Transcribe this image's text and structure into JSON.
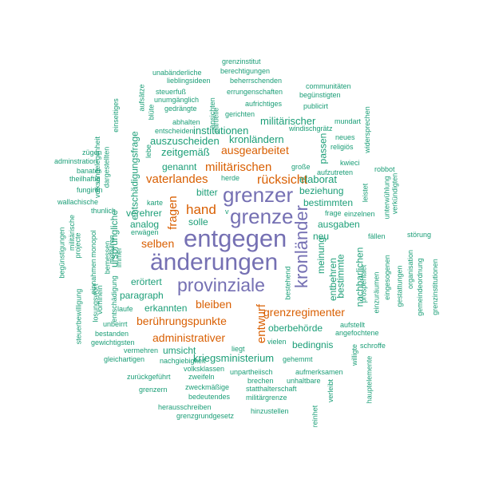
{
  "colors": {
    "purple": "#7570b3",
    "orange": "#d95f02",
    "teal": "#1b9e77"
  },
  "words": [
    "entgegen",
    "änderungen",
    "grenzer",
    "grenze",
    "provinziale",
    "kronländer",
    "rücksicht",
    "hand",
    "militärischen",
    "vaterlandes",
    "fragen",
    "entwurf",
    "grenzregimenter",
    "ausgearbeitet",
    "berührungspunkte",
    "administrativer",
    "bleiben",
    "selben",
    "institutionen",
    "kronländern",
    "auszuscheiden",
    "zeitgemäß",
    "militärischer",
    "elaborat",
    "beziehung",
    "bestimmten",
    "ausgaben",
    "entbehren",
    "meinung",
    "bestimmte",
    "nachbarlichen",
    "oberbehörde",
    "bedingnis",
    "kriegsministerium",
    "umsicht",
    "erkannten",
    "paragraph",
    "erörtert",
    "verehrer",
    "analog",
    "solle",
    "bitter",
    "genannt",
    "entschädigungsfrage",
    "ursprüngliche",
    "passen",
    "neu",
    "grenzinstitut",
    "berechtigungen",
    "beherrschenden",
    "lieblingsideen",
    "unabänderliche",
    "steuerfuß",
    "unumgänglich",
    "errungenschaften",
    "communitäten",
    "begünstigten",
    "aufrichtiges",
    "publicirt",
    "gedrängte",
    "gerichten",
    "abhalten",
    "ansichten",
    "partielle",
    "mundart",
    "entscheiden",
    "windischgrätz",
    "neues",
    "religiös",
    "widersprechen",
    "einseitiges",
    "aufsätze",
    "blüte",
    "lebe",
    "große",
    "aufzutreten",
    "robbot",
    "herde",
    "kwieci",
    "verkündigten",
    "unterwühlung",
    "leistet",
    "einzelnen",
    "frage",
    "fällen",
    "störung",
    "eingesogenen",
    "gestattungen",
    "organisation",
    "gemeindeordnung",
    "grenzinstitutionen",
    "prosperitaet",
    "einzuräumen",
    "hauptelemente",
    "angefochtene",
    "aufstellt",
    "schroffe",
    "willigte",
    "verleibt",
    "reinhet",
    "gehemmt",
    "unhaltbare",
    "statthalterschaft",
    "aufmerksamen",
    "unpartheiisch",
    "brechen",
    "militärgrenze",
    "hinzustellen",
    "grenzgrundgesetz",
    "herausschreiben",
    "bedeutendes",
    "zweckmäßige",
    "grenzern",
    "zurückgeführt",
    "zweifeln",
    "volksklassen",
    "nachgiebigkeit",
    "gleichartigen",
    "vermehren",
    "liegt",
    "vielen",
    "bestehend",
    "gewichtigsten",
    "unbeirrt",
    "laufe",
    "bestanden",
    "entschädigung",
    "losungswort",
    "vorhinein",
    "einnahmen",
    "steuerbewilligung",
    "begünstigungen",
    "militärische",
    "projecte",
    "monopol",
    "motiviren",
    "bemessen",
    "immer",
    "erwägen",
    "thunlich",
    "karte",
    "v",
    "wallachische",
    "fungiren",
    "theilhaftig",
    "banater",
    "adminstration",
    "zügen",
    "volksangelegenheit",
    "dargestellten"
  ]
}
